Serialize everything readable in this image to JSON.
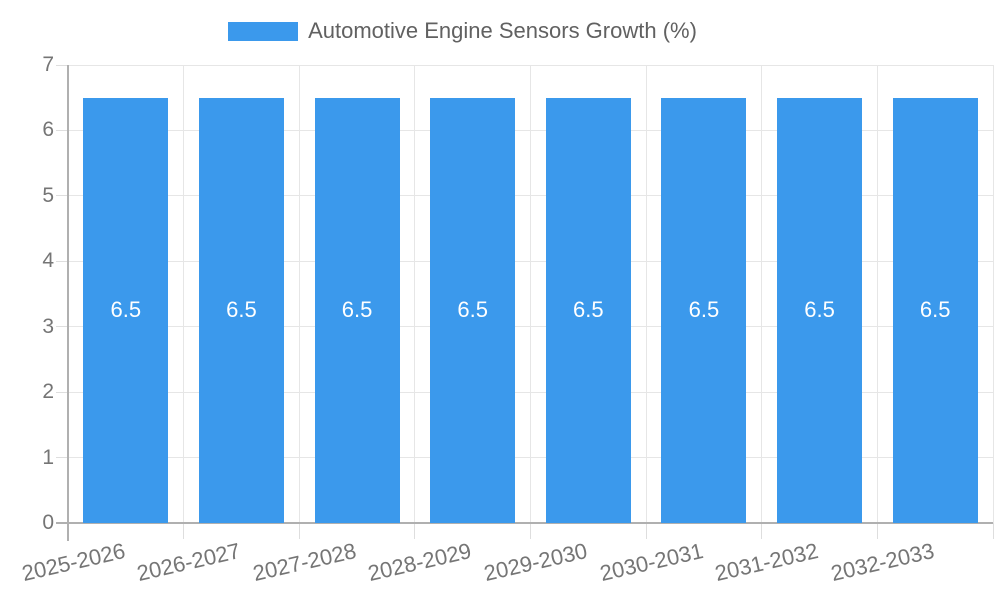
{
  "chart_data": {
    "type": "bar",
    "title": "Automotive Engine Sensors Growth (%)",
    "legend": {
      "position": "top",
      "label": "Automotive Engine Sensors Growth (%)"
    },
    "categories": [
      "2025-2026",
      "2026-2027",
      "2027-2028",
      "2028-2029",
      "2029-2030",
      "2030-2031",
      "2031-2032",
      "2032-2033"
    ],
    "values": [
      6.5,
      6.5,
      6.5,
      6.5,
      6.5,
      6.5,
      6.5,
      6.5
    ],
    "bar_labels": [
      "6.5",
      "6.5",
      "6.5",
      "6.5",
      "6.5",
      "6.5",
      "6.5",
      "6.5"
    ],
    "xlabel": "",
    "ylabel": "",
    "ylim": [
      0,
      7
    ],
    "yticks": [
      0,
      1,
      2,
      3,
      4,
      5,
      6,
      7
    ],
    "grid": true,
    "x_tick_rotation_deg": -13,
    "colors": {
      "bar": "#3b99ec",
      "grid": "#e6e6e6",
      "axis": "#b0b0b0",
      "tick_mark": "#dedede",
      "tick_text": "#757575",
      "legend_text": "#616161",
      "value_label": "#ffffff",
      "background": "#ffffff"
    }
  }
}
